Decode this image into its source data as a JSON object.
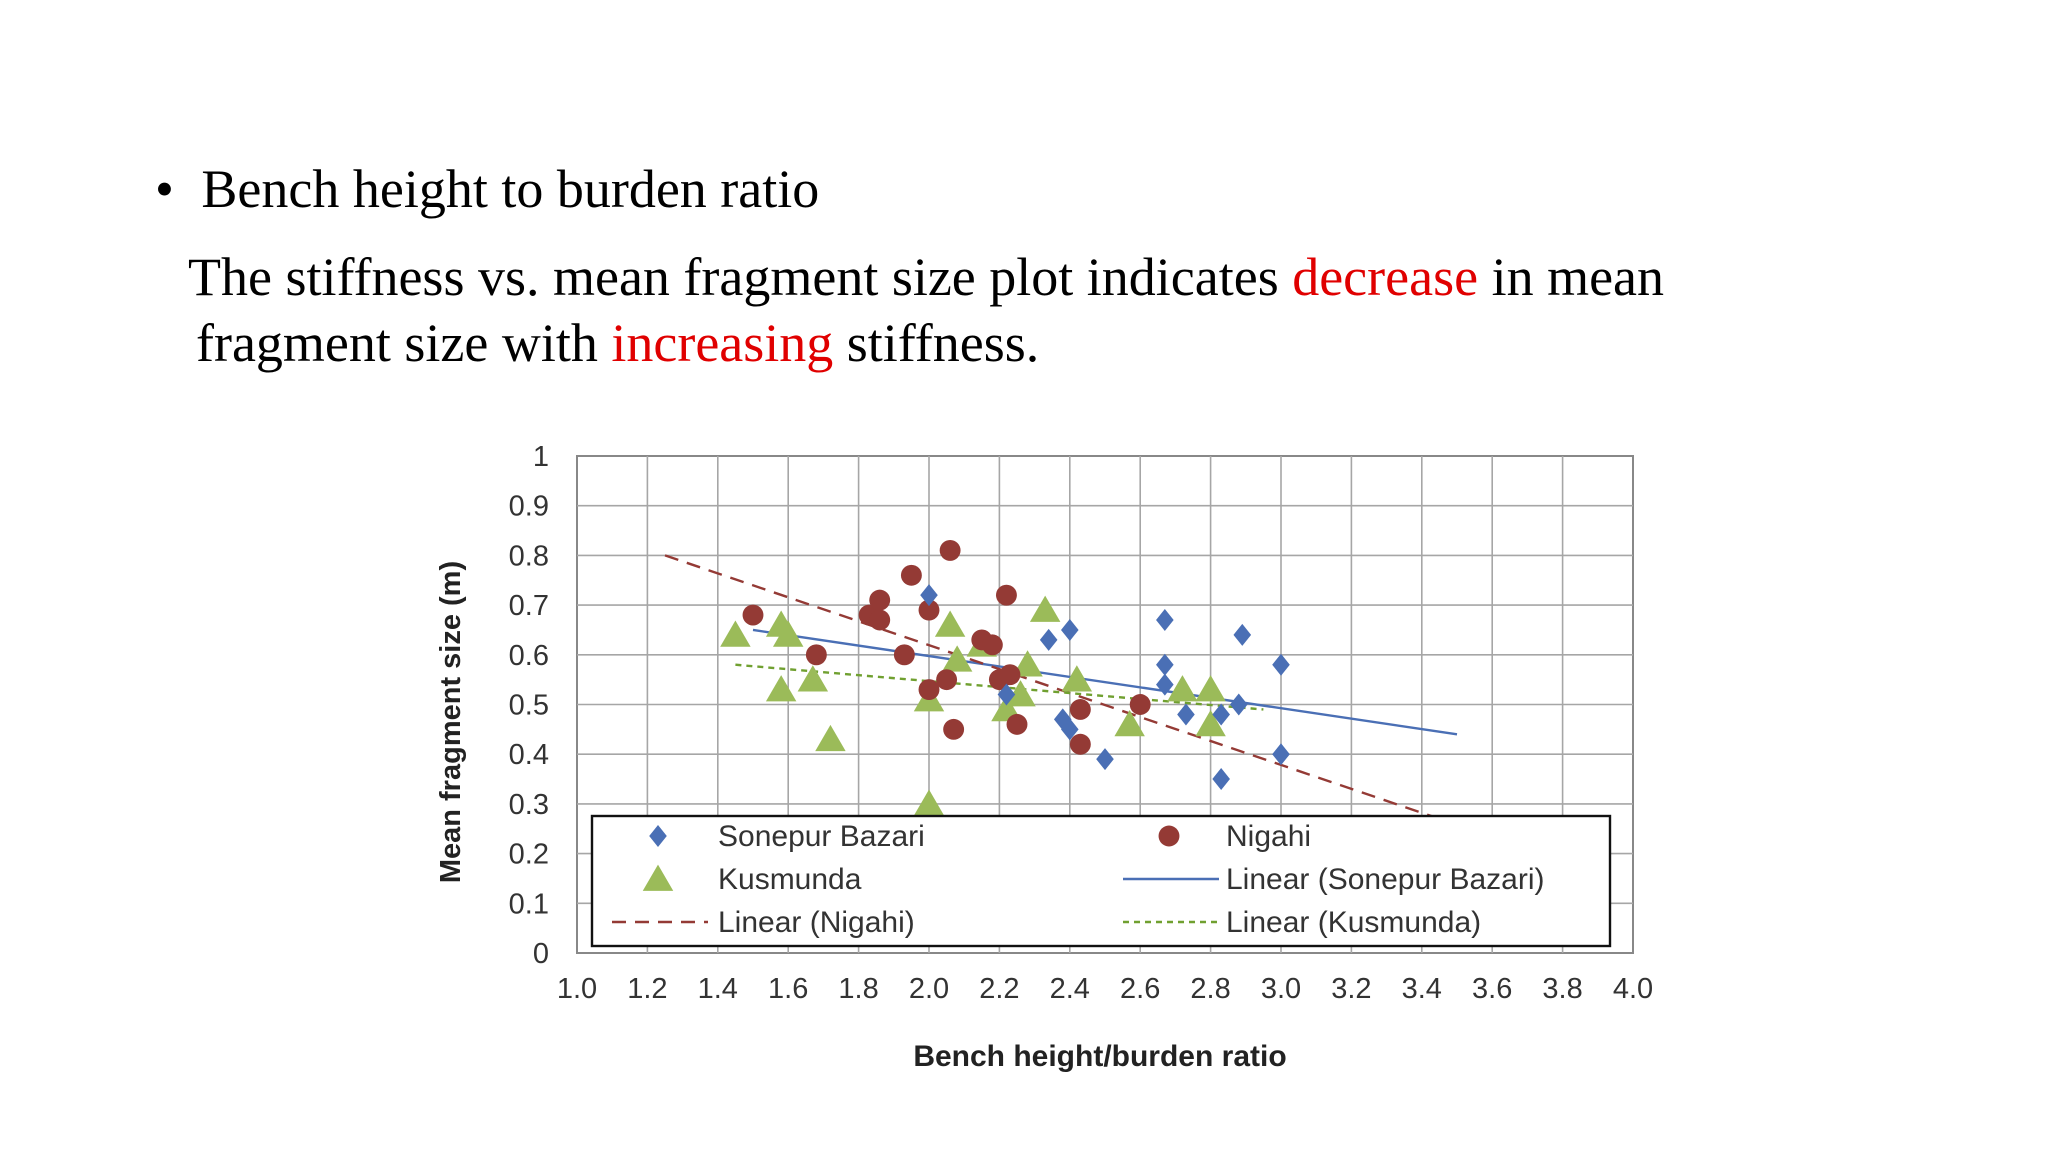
{
  "slide": {
    "bullet": "•",
    "heading": "Bench height to burden ratio",
    "text_part1": "The stiffness vs. mean fragment size plot indicates ",
    "highlight1": "decrease",
    "text_part2": " in mean",
    "text_part3": "fragment size with ",
    "highlight2": "increasing",
    "text_part4": " stiffness.",
    "highlight_color": "#e00000"
  },
  "chart_data": {
    "type": "scatter",
    "xlabel": "Bench height/burden ratio",
    "ylabel": "Mean fragment size (m)",
    "xlim": [
      1.0,
      4.0
    ],
    "ylim": [
      0,
      1
    ],
    "x_ticks": [
      "1.0",
      "1.2",
      "1.4",
      "1.6",
      "1.8",
      "2.0",
      "2.2",
      "2.4",
      "2.6",
      "2.8",
      "3.0",
      "3.2",
      "3.4",
      "3.6",
      "3.8",
      "4.0"
    ],
    "y_ticks": [
      "0",
      "0.1",
      "0.2",
      "0.3",
      "0.4",
      "0.5",
      "0.6",
      "0.7",
      "0.8",
      "0.9",
      "1"
    ],
    "grid": true,
    "legend_position": "bottom-inside",
    "series": [
      {
        "name": "Sonepur Bazari",
        "marker": "diamond",
        "color": "#4a6fb5",
        "points": [
          [
            2.0,
            0.72
          ],
          [
            2.22,
            0.52
          ],
          [
            2.34,
            0.63
          ],
          [
            2.38,
            0.47
          ],
          [
            2.4,
            0.65
          ],
          [
            2.4,
            0.45
          ],
          [
            2.5,
            0.39
          ],
          [
            2.67,
            0.67
          ],
          [
            2.67,
            0.58
          ],
          [
            2.67,
            0.54
          ],
          [
            2.73,
            0.48
          ],
          [
            2.83,
            0.48
          ],
          [
            2.83,
            0.35
          ],
          [
            2.88,
            0.5
          ],
          [
            2.89,
            0.64
          ],
          [
            3.0,
            0.58
          ],
          [
            3.0,
            0.4
          ]
        ]
      },
      {
        "name": "Nigahi",
        "marker": "circle",
        "color": "#943a35",
        "points": [
          [
            1.5,
            0.68
          ],
          [
            1.68,
            0.6
          ],
          [
            1.83,
            0.68
          ],
          [
            1.86,
            0.71
          ],
          [
            1.86,
            0.67
          ],
          [
            1.93,
            0.6
          ],
          [
            1.95,
            0.76
          ],
          [
            2.0,
            0.69
          ],
          [
            2.0,
            0.53
          ],
          [
            2.05,
            0.55
          ],
          [
            2.06,
            0.81
          ],
          [
            2.07,
            0.45
          ],
          [
            2.15,
            0.63
          ],
          [
            2.18,
            0.62
          ],
          [
            2.2,
            0.55
          ],
          [
            2.22,
            0.72
          ],
          [
            2.23,
            0.56
          ],
          [
            2.25,
            0.46
          ],
          [
            2.43,
            0.49
          ],
          [
            2.43,
            0.42
          ],
          [
            2.6,
            0.5
          ]
        ]
      },
      {
        "name": "Kusmunda",
        "marker": "triangle",
        "color": "#9bbb59",
        "points": [
          [
            1.45,
            0.64
          ],
          [
            1.58,
            0.53
          ],
          [
            1.58,
            0.66
          ],
          [
            1.6,
            0.64
          ],
          [
            1.67,
            0.55
          ],
          [
            1.72,
            0.43
          ],
          [
            2.0,
            0.51
          ],
          [
            2.0,
            0.3
          ],
          [
            2.06,
            0.66
          ],
          [
            2.08,
            0.59
          ],
          [
            2.15,
            0.62
          ],
          [
            2.22,
            0.49
          ],
          [
            2.26,
            0.52
          ],
          [
            2.28,
            0.58
          ],
          [
            2.33,
            0.69
          ],
          [
            2.42,
            0.55
          ],
          [
            2.57,
            0.46
          ],
          [
            2.72,
            0.53
          ],
          [
            2.8,
            0.53
          ],
          [
            2.8,
            0.46
          ]
        ]
      }
    ],
    "trendlines": [
      {
        "name": "Linear (Sonepur Bazari)",
        "style": "solid",
        "color": "#4a6fb5",
        "from": [
          1.5,
          0.65
        ],
        "to": [
          3.5,
          0.44
        ]
      },
      {
        "name": "Linear (Nigahi)",
        "style": "dashed",
        "color": "#943a35",
        "from": [
          1.25,
          0.8
        ],
        "to": [
          3.45,
          0.27
        ]
      },
      {
        "name": "Linear (Kusmunda)",
        "style": "dotted",
        "color": "#70a030",
        "from": [
          1.45,
          0.58
        ],
        "to": [
          2.95,
          0.49
        ]
      }
    ],
    "legend": [
      {
        "label": "Sonepur Bazari",
        "symbol": "diamond",
        "color": "#4a6fb5"
      },
      {
        "label": "Nigahi",
        "symbol": "circle",
        "color": "#943a35"
      },
      {
        "label": "Kusmunda",
        "symbol": "triangle",
        "color": "#9bbb59"
      },
      {
        "label": "Linear (Sonepur Bazari)",
        "symbol": "solid-line",
        "color": "#4a6fb5"
      },
      {
        "label": "Linear (Nigahi)",
        "symbol": "dashed-line",
        "color": "#943a35"
      },
      {
        "label": "Linear (Kusmunda)",
        "symbol": "dotted-line",
        "color": "#70a030"
      }
    ]
  }
}
